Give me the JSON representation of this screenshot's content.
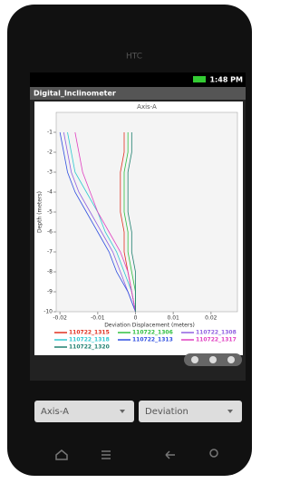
{
  "phone": {
    "brand": "HTC",
    "time": "1:48 PM"
  },
  "app": {
    "title": "Digital_Inclinometer"
  },
  "chart_data": {
    "type": "line",
    "title": "Axis-A",
    "x_label": "Deviation Displacement (meters)",
    "y_label": "Depth (meters)",
    "y": [
      -1,
      -2,
      -3,
      -4,
      -5,
      -6,
      -7,
      -8,
      -9,
      -10
    ],
    "xlim": [
      -0.021,
      0.027
    ],
    "ylim": [
      0,
      -10
    ],
    "xticks": [
      -0.02,
      -0.01,
      0,
      0.01,
      0.02
    ],
    "yticks": [
      -1,
      -2,
      -3,
      -4,
      -5,
      -6,
      -7,
      -8,
      -9,
      -10
    ],
    "series": [
      {
        "name": "110722_1315",
        "color": "#e03020",
        "values": [
          -0.003,
          -0.003,
          -0.004,
          -0.004,
          -0.004,
          -0.003,
          -0.003,
          -0.002,
          -0.001,
          0
        ]
      },
      {
        "name": "110722_1306",
        "color": "#30c040",
        "values": [
          -0.002,
          -0.002,
          -0.003,
          -0.003,
          -0.003,
          -0.002,
          -0.002,
          -0.001,
          0,
          0
        ]
      },
      {
        "name": "110722_1308",
        "color": "#9060e0",
        "values": [
          -0.019,
          -0.018,
          -0.017,
          -0.015,
          -0.012,
          -0.009,
          -0.006,
          -0.004,
          -0.002,
          0
        ]
      },
      {
        "name": "110722_1318",
        "color": "#30c8d0",
        "values": [
          -0.018,
          -0.017,
          -0.016,
          -0.013,
          -0.01,
          -0.008,
          -0.005,
          -0.003,
          -0.001,
          0
        ]
      },
      {
        "name": "110722_1313",
        "color": "#3050e0",
        "values": [
          -0.02,
          -0.019,
          -0.018,
          -0.016,
          -0.013,
          -0.01,
          -0.007,
          -0.005,
          -0.002,
          0
        ]
      },
      {
        "name": "110722_1317",
        "color": "#e040c0",
        "values": [
          -0.016,
          -0.015,
          -0.014,
          -0.012,
          -0.01,
          -0.007,
          -0.004,
          -0.002,
          -0.001,
          0
        ]
      },
      {
        "name": "110722_1320",
        "color": "#208070",
        "values": [
          -0.001,
          -0.001,
          -0.002,
          -0.002,
          -0.002,
          -0.001,
          -0.001,
          0,
          0,
          0
        ]
      }
    ]
  },
  "controls": {
    "axis_spinner": "Axis-A",
    "mode_spinner": "Deviation"
  }
}
